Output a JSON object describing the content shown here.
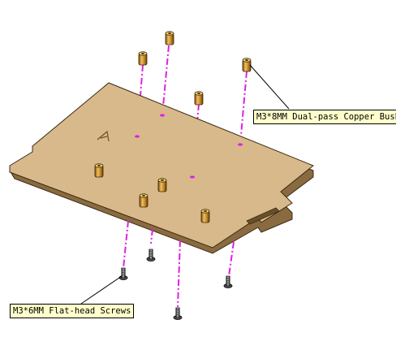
{
  "callouts": {
    "bush": "M3*8MM Dual-pass Copper Bush",
    "screw": "M3*6MM Flat-head Screws"
  },
  "colors": {
    "board_top": "#d8b98b",
    "board_edge": "#8a6a40",
    "guide_line": "#e020e0",
    "brass": "#c8902a",
    "callout_fill": "#ffffcc"
  }
}
